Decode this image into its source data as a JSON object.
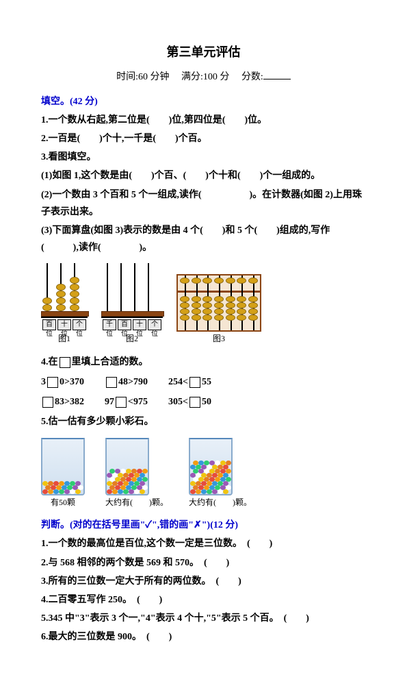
{
  "title": "第三单元评估",
  "meta_time": "时间:60 分钟",
  "meta_full": "满分:100 分",
  "meta_score": "分数:",
  "sec1": "填空。(42 分)",
  "q1": "1.一个数从右起,第二位是(　　)位,第四位是(　　)位。",
  "q2": "2.一百是(　　)个十,一千是(　　)个百。",
  "q3": "3.看图填空。",
  "q3a": "(1)如图 1,这个数是由(　　)个百、(　　)个十和(　　)个一组成的。",
  "q3b": "(2)一个数由 3 个百和 5 个一组成,读作(　　　　　)。在计数器(如图 2)上用珠子表示出来。",
  "q3c": "(3)下面算盘(如图 3)表示的数是由 4 个(　　)和 5 个(　　)组成的,写作(　　　),读作(　　　　)。",
  "fig1_labels": [
    "百位",
    "十位",
    "个位"
  ],
  "fig1_caption": "图1",
  "fig1_beads": [
    2,
    4,
    5
  ],
  "fig2_labels": [
    "千位",
    "百位",
    "十位",
    "个位"
  ],
  "fig2_caption": "图2",
  "fig3_caption": "图3",
  "q4": "4.在　里填上合适的数。",
  "q4_row1": [
    "3　0>370",
    "　48>790",
    "254<　55"
  ],
  "q4_row2": [
    "　83>382",
    "97　<975",
    "305<　50"
  ],
  "q5": "5.估一估有多少颗小彩石。",
  "jar1_label": "有50颗",
  "jar2_label": "大约有(　　)颗。",
  "jar3_label": "大约有(　　)颗。",
  "jar_fill_heights": [
    18,
    40,
    55
  ],
  "sec2": "判断。(对的在括号里画\"✓\",错的画\"✗\")(12 分)",
  "j1": "1.一个数的最高位是百位,这个数一定是三位数。　(　　)",
  "j2": "2.与 568 相邻的两个数是 569 和 570。　(　　)",
  "j3": "3.所有的三位数一定大于所有的两位数。　(　　)",
  "j4": "4.二百零五写作 250。　(　　)",
  "j5": "5.345 中\"3\"表示 3 个一,\"4\"表示 4 个十,\"5\"表示 5 个百。　(　　)",
  "j6": "6.最大的三位数是 900。　(　　)",
  "pebble_colors": [
    "#e74c3c",
    "#f39c12",
    "#3498db",
    "#2ecc71",
    "#9b59b6",
    "#ffffff",
    "#f1c40f",
    "#e67e22"
  ],
  "suanpan_rods": 7
}
